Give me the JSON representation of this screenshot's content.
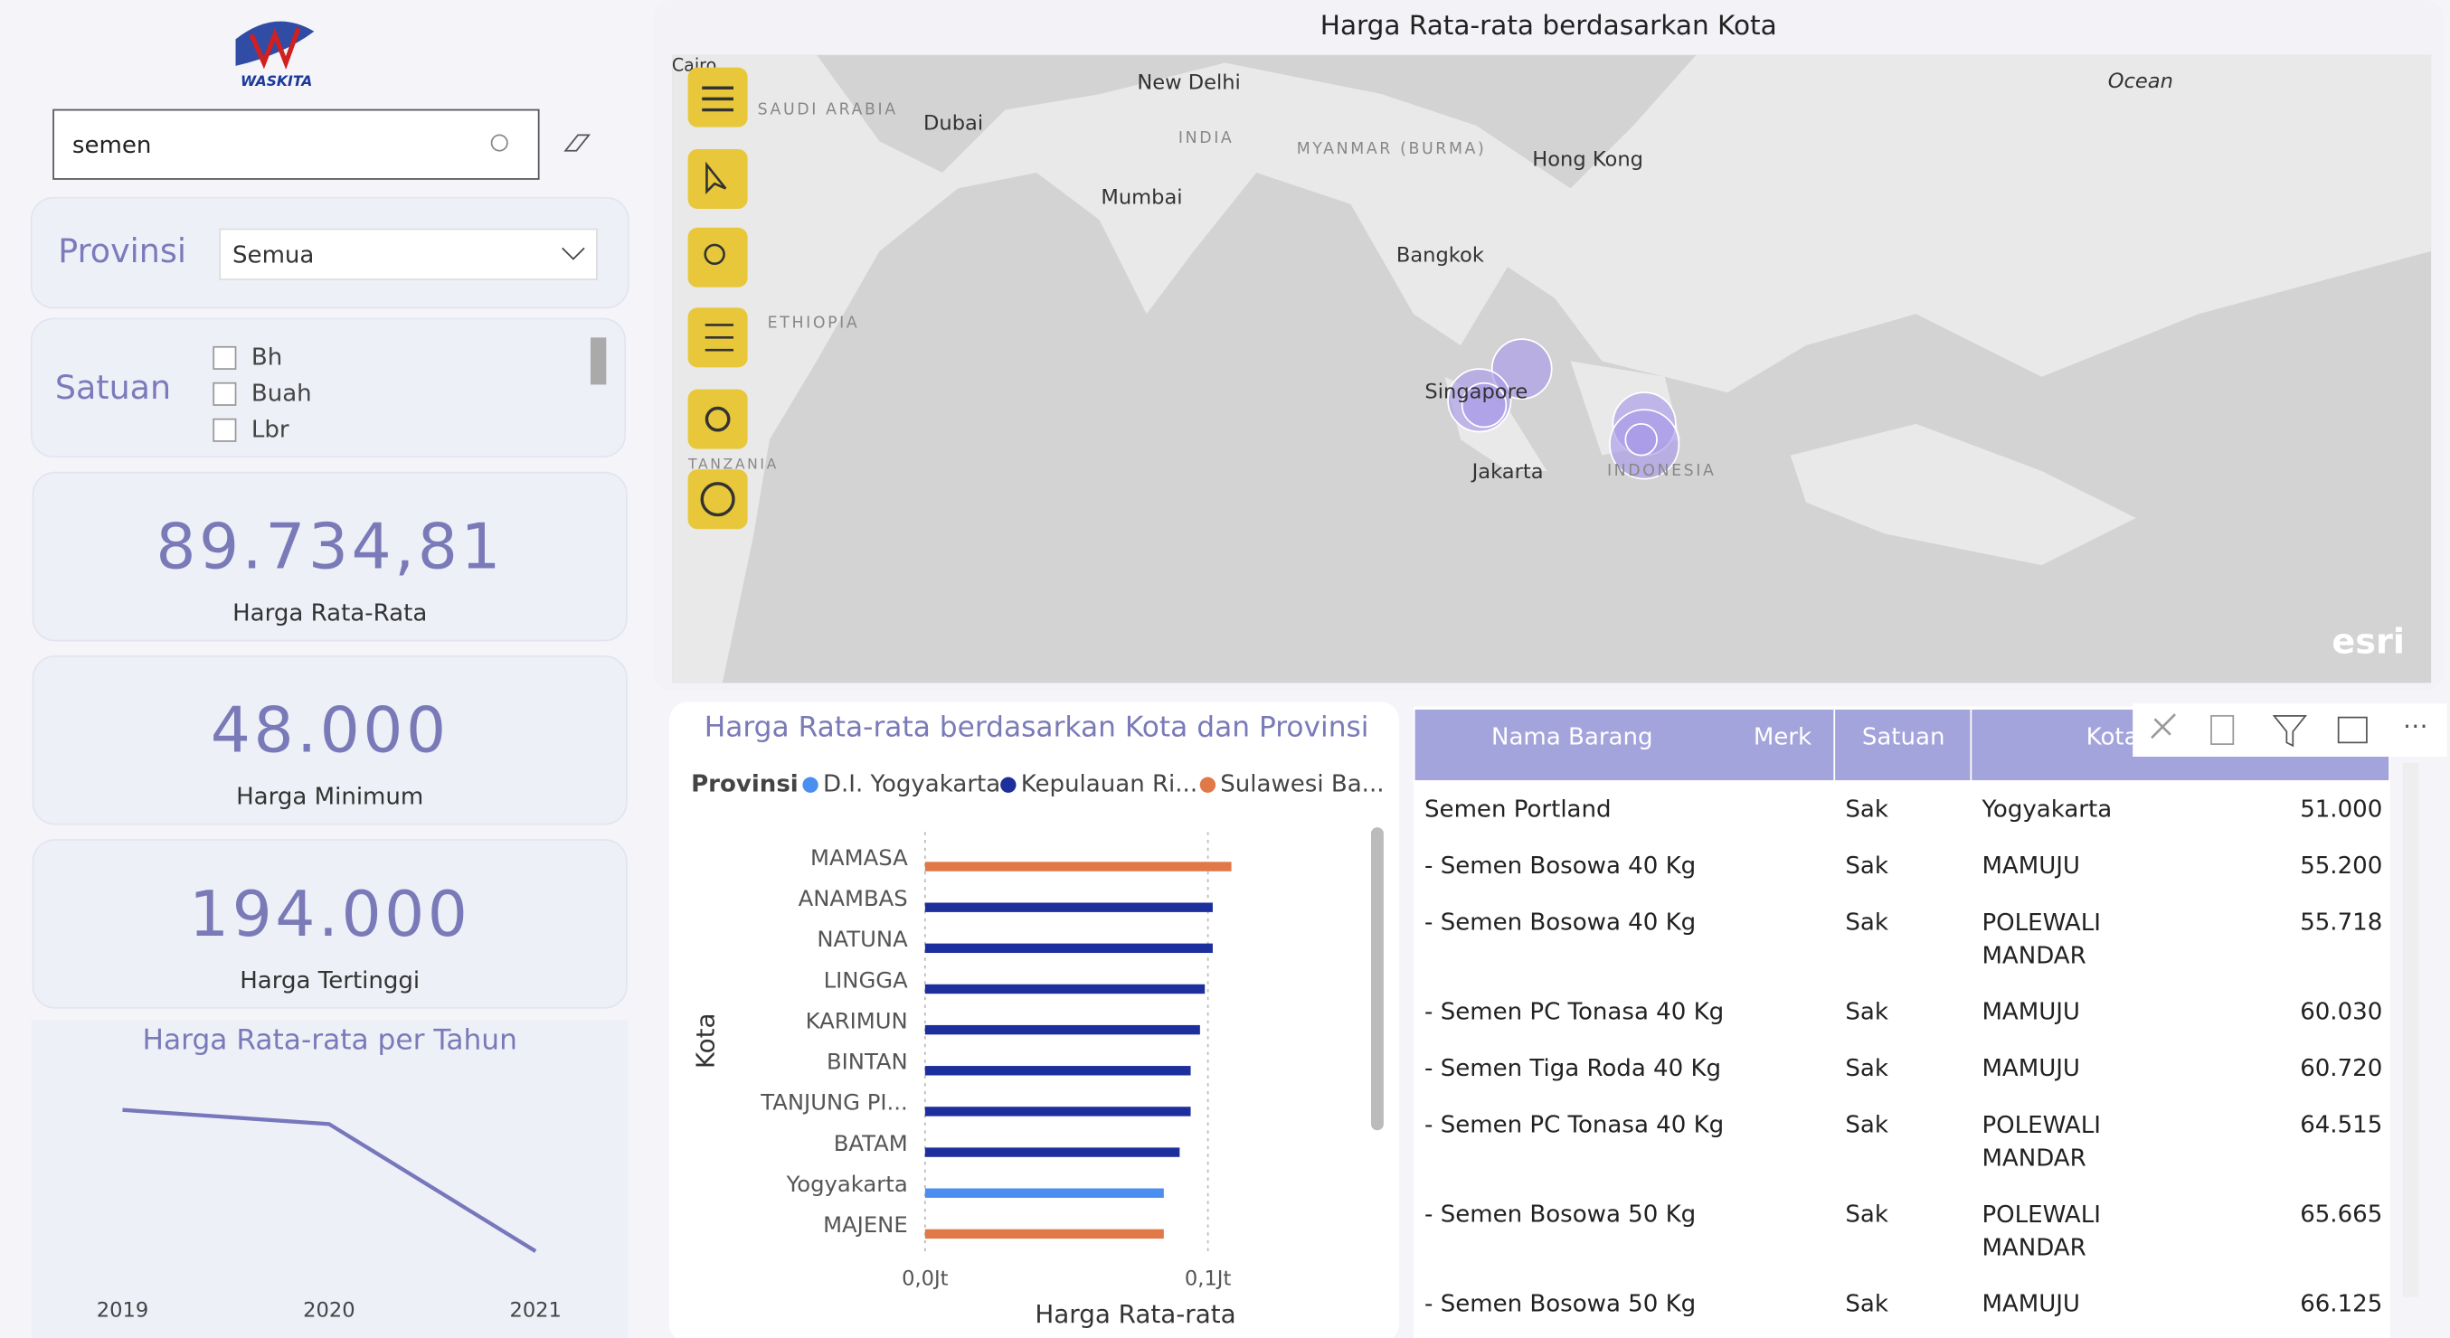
{
  "logo": "WASKITA",
  "search": {
    "value": "semen"
  },
  "filters": {
    "provinsi": {
      "label": "Provinsi",
      "value": "Semua"
    },
    "satuan": {
      "label": "Satuan",
      "options": [
        "Bh",
        "Buah",
        "Lbr"
      ]
    }
  },
  "cards": [
    {
      "value": "89.734,81",
      "label": "Harga Rata-Rata"
    },
    {
      "value": "48.000",
      "label": "Harga Minimum"
    },
    {
      "value": "194.000",
      "label": "Harga Tertinggi"
    }
  ],
  "map": {
    "title": "Harga Rata-rata berdasarkan Kota",
    "places": [
      "Cairo",
      "SAUDI ARABIA",
      "Dubai",
      "New Delhi",
      "INDIA",
      "MYANMAR (BURMA)",
      "Hong Kong",
      "Mumbai",
      "Bangkok",
      "Singapore",
      "Jakarta",
      "INDONESIA",
      "ETHIOPIA",
      "TANZANIA",
      "Ocean"
    ],
    "credit": "esri"
  },
  "chart_data": [
    {
      "type": "line",
      "title": "Harga Rata-rata per Tahun",
      "categories": [
        "2019",
        "2020",
        "2021"
      ],
      "values": [
        100000,
        97000,
        70000
      ],
      "color": "#7777bb"
    },
    {
      "type": "bar",
      "orientation": "horizontal",
      "title": "Harga Rata-rata berdasarkan Kota dan Provinsi",
      "legend_title": "Provinsi",
      "x_label": "Harga Rata-rata",
      "y_label": "Kota",
      "categories": [
        "MAMASA",
        "ANAMBAS",
        "NATUNA",
        "LINGGA",
        "KARIMUN",
        "BINTAN",
        "TANJUNG PI...",
        "BATAM",
        "Yogyakarta",
        "MAJENE"
      ],
      "series": [
        {
          "name": "D.I. Yogyakarta",
          "color": "#4a8ef0",
          "values": [
            null,
            null,
            null,
            null,
            null,
            null,
            null,
            null,
            0.0844,
            null
          ]
        },
        {
          "name": "Kepulauan Ri...",
          "color": "#1c2f9c",
          "values": [
            null,
            0.1017,
            0.1017,
            0.0989,
            0.0972,
            0.0939,
            0.0939,
            0.09,
            null,
            null
          ]
        },
        {
          "name": "Sulawesi Ba...",
          "color": "#e07848",
          "values": [
            0.1083,
            null,
            null,
            null,
            null,
            null,
            null,
            null,
            null,
            0.0844
          ]
        }
      ],
      "xlim": [
        0,
        0.156
      ],
      "xticks": [
        {
          "value": 0,
          "label": "0,0Jt"
        },
        {
          "value": 0.1,
          "label": "0,1Jt"
        }
      ],
      "grid": true
    }
  ],
  "table": {
    "columns": [
      "Nama Barang",
      "Merk",
      "Satuan",
      "Kota"
    ],
    "rows": [
      {
        "nama": "Semen Portland",
        "satuan": "Sak",
        "kota": "Yogyakarta",
        "harga": "51.000"
      },
      {
        "nama": "- Semen Bosowa 40 Kg",
        "satuan": "Sak",
        "kota": "MAMUJU",
        "harga": "55.200"
      },
      {
        "nama": "- Semen Bosowa 40 Kg",
        "satuan": "Sak",
        "kota": "POLEWALI MANDAR",
        "harga": "55.718"
      },
      {
        "nama": "- Semen PC Tonasa 40 Kg",
        "satuan": "Sak",
        "kota": "MAMUJU",
        "harga": "60.030"
      },
      {
        "nama": "- Semen Tiga Roda 40 Kg",
        "satuan": "Sak",
        "kota": "MAMUJU",
        "harga": "60.720"
      },
      {
        "nama": "- Semen PC Tonasa 40 Kg",
        "satuan": "Sak",
        "kota": "POLEWALI MANDAR",
        "harga": "64.515"
      },
      {
        "nama": "- Semen Bosowa 50 Kg",
        "satuan": "Sak",
        "kota": "POLEWALI MANDAR",
        "harga": "65.665"
      },
      {
        "nama": "- Semen Bosowa 50 Kg",
        "satuan": "Sak",
        "kota": "MAMUJU",
        "harga": "66.125"
      }
    ]
  }
}
